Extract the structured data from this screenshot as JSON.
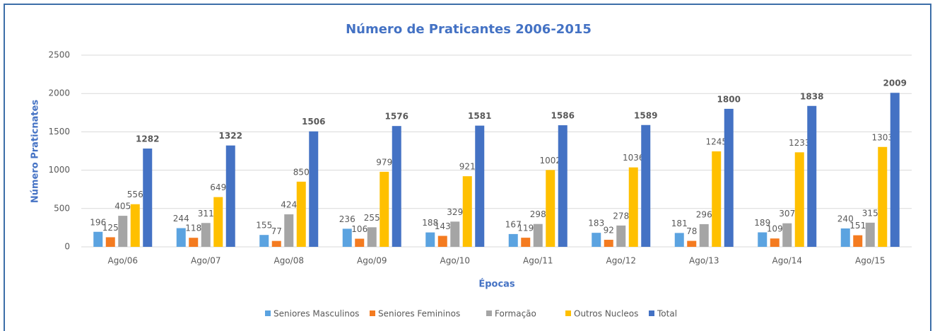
{
  "chart_data": {
    "type": "bar",
    "title": "Número de Praticantes 2006-2015",
    "x_label": "Épocas",
    "y_label": "Número Praticnates",
    "categories": [
      "Ago/06",
      "Ago/07",
      "Ago/08",
      "Ago/09",
      "Ago/10",
      "Ago/11",
      "Ago/12",
      "Ago/13",
      "Ago/14",
      "Ago/15"
    ],
    "series": [
      {
        "name": "Seniores Masculinos",
        "color": "#5ba3e0",
        "values": [
          196,
          244,
          155,
          236,
          188,
          167,
          183,
          181,
          189,
          240
        ]
      },
      {
        "name": "Seniores Femininos",
        "color": "#f47b20",
        "values": [
          125,
          118,
          77,
          106,
          143,
          119,
          92,
          78,
          109,
          151
        ]
      },
      {
        "name": "Formação",
        "color": "#a5a5a5",
        "values": [
          405,
          311,
          424,
          255,
          329,
          298,
          278,
          296,
          307,
          315
        ]
      },
      {
        "name": "Outros Nucleos",
        "color": "#ffc000",
        "values": [
          556,
          649,
          850,
          979,
          921,
          1002,
          1036,
          1245,
          1233,
          1303
        ]
      },
      {
        "name": "Total",
        "color": "#4472c4",
        "values": [
          1282,
          1322,
          1506,
          1576,
          1581,
          1586,
          1589,
          1800,
          1838,
          2009
        ]
      }
    ],
    "ylim": [
      0,
      2500
    ],
    "yticks": [
      0,
      500,
      1000,
      1500,
      2000,
      2500
    ],
    "grid": true,
    "legend": "bottom"
  }
}
